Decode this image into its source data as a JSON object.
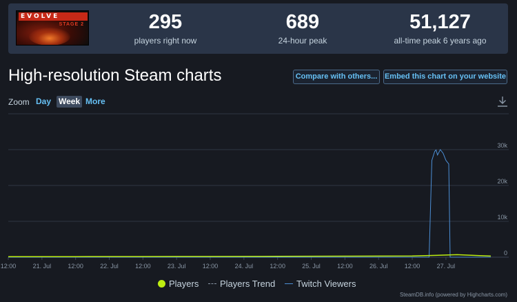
{
  "stats": {
    "logo": {
      "title": "EVOLVE",
      "subtitle": "STAGE 2"
    },
    "items": [
      {
        "value": "295",
        "label": "players right now"
      },
      {
        "value": "689",
        "label": "24-hour peak"
      },
      {
        "value": "51,127",
        "label": "all-time peak 6 years ago"
      }
    ]
  },
  "heading": "High-resolution Steam charts",
  "buttons": {
    "compare": "Compare with others...",
    "embed": "Embed this chart on your website"
  },
  "zoom": {
    "label": "Zoom",
    "options": [
      "Day",
      "Week",
      "More"
    ],
    "selected": "Week"
  },
  "legend": {
    "players": "Players",
    "trend": "Players Trend",
    "twitch": "Twitch Viewers"
  },
  "credits": "SteamDB.info (powered by Highcharts.com)",
  "colors": {
    "players": "#beee11",
    "twitch": "#4c8fd6",
    "trend": "#8a97a6",
    "accent": "#66c0f4"
  },
  "chart_data": {
    "type": "line",
    "x_ticks": [
      "12:00",
      "21. Jul",
      "12:00",
      "22. Jul",
      "12:00",
      "23. Jul",
      "12:00",
      "24. Jul",
      "12:00",
      "25. Jul",
      "12:00",
      "26. Jul",
      "12:00",
      "27. Jul"
    ],
    "y_ticks": [
      "0",
      "10k",
      "20k",
      "30k"
    ],
    "ylim": [
      0,
      40000
    ],
    "grid": true,
    "legend_position": "bottom",
    "series": [
      {
        "name": "Players",
        "x_hours": [
          0,
          24,
          48,
          72,
          96,
          120,
          144,
          156,
          160,
          168,
          172
        ],
        "values": [
          150,
          160,
          170,
          200,
          230,
          280,
          350,
          600,
          689,
          450,
          300
        ]
      },
      {
        "name": "Twitch Viewers",
        "x_hours": [
          0,
          150,
          151,
          152,
          152.5,
          153,
          154,
          155,
          156,
          157,
          157.5,
          158,
          172
        ],
        "values": [
          0,
          0,
          27000,
          29500,
          29900,
          28500,
          30000,
          29000,
          27000,
          26000,
          0,
          0,
          0
        ]
      }
    ]
  }
}
